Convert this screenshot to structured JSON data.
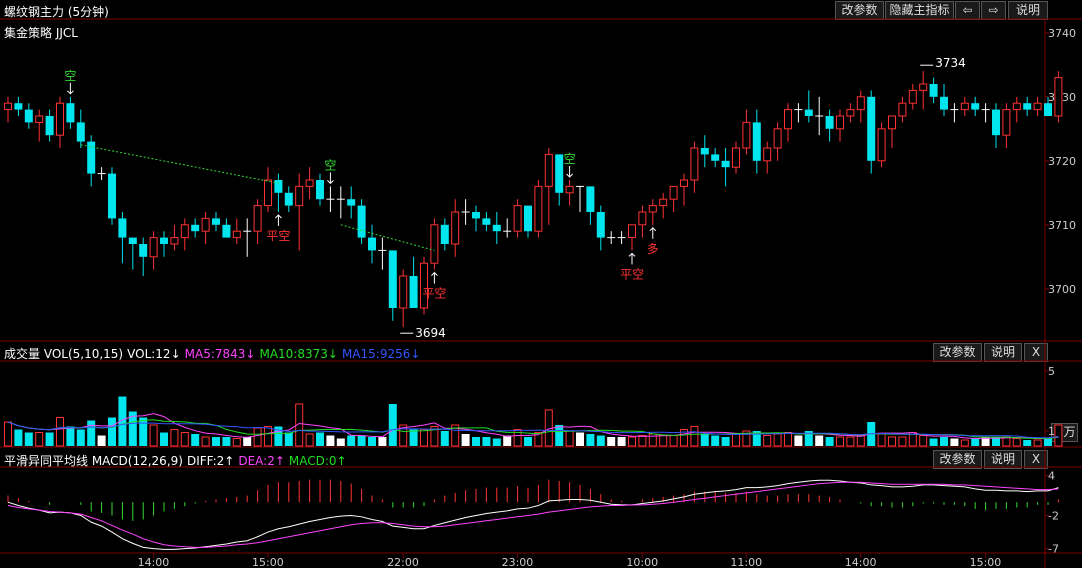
{
  "main": {
    "title": "螺纹钢主力 (5分钟)",
    "strategy": "集金策略 JJCL",
    "buttons": {
      "params": "改参数",
      "hide": "隐藏主指标",
      "left": "⇦",
      "right": "⇨",
      "help": "说明"
    },
    "y_ticks": [
      "3740",
      "3730",
      "3720",
      "3710",
      "3700"
    ],
    "high_label": "3734",
    "low_label": "3694"
  },
  "volume": {
    "segments": [
      {
        "text": "成交量 VOL(5,10,15)",
        "color": "#ffffff"
      },
      {
        "text": "VOL:12↓",
        "color": "#ffffff"
      },
      {
        "text": "MA5:7843↓",
        "color": "#ff44ff"
      },
      {
        "text": "MA10:8373↓",
        "color": "#22dd22"
      },
      {
        "text": "MA15:9256↓",
        "color": "#3355ff"
      }
    ],
    "buttons": {
      "params": "改参数",
      "help": "说明",
      "close": "X"
    },
    "y_ticks": [
      "5",
      "1"
    ],
    "unit_label": "×万"
  },
  "macd": {
    "segments": [
      {
        "text": "平滑异同平均线 MACD(12,26,9)",
        "color": "#ffffff"
      },
      {
        "text": "DIFF:2↑",
        "color": "#ffffff"
      },
      {
        "text": "DEA:2↑",
        "color": "#ff44ff"
      },
      {
        "text": "MACD:0↑",
        "color": "#22dd22"
      }
    ],
    "buttons": {
      "params": "改参数",
      "help": "说明",
      "close": "X"
    },
    "y_ticks": [
      "4",
      "-2",
      "-7"
    ]
  },
  "x_ticks": [
    "14:00",
    "15:00",
    "22:00",
    "23:00",
    "10:00",
    "11:00",
    "14:00",
    "15:00"
  ],
  "signals": [
    {
      "text": "空",
      "color": "#33dd33"
    },
    {
      "text": "平空",
      "color": "#ff3333"
    },
    {
      "text": "空",
      "color": "#33dd33"
    },
    {
      "text": "平空",
      "color": "#ff3333"
    },
    {
      "text": "空",
      "color": "#33dd33"
    },
    {
      "text": "平空",
      "color": "#ff3333"
    },
    {
      "text": "多",
      "color": "#ff3333"
    }
  ],
  "colors": {
    "up": "#ff3333",
    "down": "#00e5ee",
    "flat": "#ffffff",
    "grid": "#7a0000",
    "bg": "#000000"
  },
  "chart_data": {
    "type": "candlestick",
    "ylim": [
      3692,
      3742
    ],
    "candles": [
      [
        3728,
        3730,
        3726,
        3729
      ],
      [
        3729,
        3730,
        3727,
        3728
      ],
      [
        3728,
        3729,
        3725,
        3726
      ],
      [
        3726,
        3728,
        3723,
        3727
      ],
      [
        3727,
        3728,
        3723,
        3724
      ],
      [
        3724,
        3730,
        3722,
        3729
      ],
      [
        3729,
        3730,
        3725,
        3726
      ],
      [
        3726,
        3728,
        3722,
        3723
      ],
      [
        3723,
        3724,
        3716,
        3718
      ],
      [
        3718,
        3719,
        3717,
        3718
      ],
      [
        3718,
        3719,
        3710,
        3711
      ],
      [
        3711,
        3712,
        3704,
        3708
      ],
      [
        3708,
        3708,
        3703,
        3707
      ],
      [
        3707,
        3708,
        3702,
        3705
      ],
      [
        3705,
        3709,
        3703,
        3708
      ],
      [
        3708,
        3709,
        3705,
        3707
      ],
      [
        3707,
        3710,
        3706,
        3708
      ],
      [
        3708,
        3711,
        3706,
        3710
      ],
      [
        3710,
        3711,
        3708,
        3709
      ],
      [
        3709,
        3712,
        3707,
        3711
      ],
      [
        3711,
        3712,
        3709,
        3710
      ],
      [
        3710,
        3711,
        3708,
        3708
      ],
      [
        3708,
        3711,
        3707,
        3709
      ],
      [
        3709,
        3711,
        3705,
        3709
      ],
      [
        3709,
        3714,
        3707,
        3713
      ],
      [
        3713,
        3719,
        3712,
        3717
      ],
      [
        3717,
        3718,
        3712,
        3715
      ],
      [
        3715,
        3716,
        3712,
        3713
      ],
      [
        3713,
        3718,
        3706,
        3716
      ],
      [
        3716,
        3719,
        3714,
        3717
      ],
      [
        3717,
        3718,
        3713,
        3714
      ],
      [
        3714,
        3716,
        3712,
        3714
      ],
      [
        3714,
        3716,
        3711,
        3714
      ],
      [
        3714,
        3716,
        3711,
        3713
      ],
      [
        3713,
        3714,
        3707,
        3708
      ],
      [
        3708,
        3710,
        3704,
        3706
      ],
      [
        3706,
        3708,
        3703,
        3706
      ],
      [
        3706,
        3706,
        3695,
        3697
      ],
      [
        3697,
        3703,
        3694,
        3702
      ],
      [
        3702,
        3705,
        3697,
        3697
      ],
      [
        3697,
        3705,
        3696,
        3704
      ],
      [
        3704,
        3711,
        3703,
        3710
      ],
      [
        3710,
        3711,
        3706,
        3707
      ],
      [
        3707,
        3714,
        3705,
        3712
      ],
      [
        3712,
        3714,
        3710,
        3712
      ],
      [
        3712,
        3713,
        3709,
        3711
      ],
      [
        3711,
        3712,
        3709,
        3710
      ],
      [
        3710,
        3712,
        3707,
        3709
      ],
      [
        3709,
        3711,
        3708,
        3709
      ],
      [
        3709,
        3714,
        3708,
        3713
      ],
      [
        3713,
        3713,
        3708,
        3709
      ],
      [
        3709,
        3717,
        3708,
        3716
      ],
      [
        3716,
        3722,
        3710,
        3721
      ],
      [
        3721,
        3721,
        3713,
        3715
      ],
      [
        3715,
        3717,
        3713,
        3716
      ],
      [
        3716,
        3716,
        3712,
        3716
      ],
      [
        3716,
        3716,
        3710,
        3712
      ],
      [
        3712,
        3713,
        3706,
        3708
      ],
      [
        3708,
        3709,
        3707,
        3708
      ],
      [
        3708,
        3709,
        3707,
        3708
      ],
      [
        3708,
        3710,
        3706,
        3710
      ],
      [
        3710,
        3713,
        3708,
        3712
      ],
      [
        3712,
        3714,
        3710,
        3713
      ],
      [
        3713,
        3715,
        3711,
        3714
      ],
      [
        3714,
        3716,
        3712,
        3716
      ],
      [
        3716,
        3718,
        3713,
        3717
      ],
      [
        3717,
        3723,
        3715,
        3722
      ],
      [
        3722,
        3724,
        3719,
        3721
      ],
      [
        3721,
        3722,
        3719,
        3720
      ],
      [
        3720,
        3722,
        3716,
        3719
      ],
      [
        3719,
        3723,
        3718,
        3722
      ],
      [
        3722,
        3728,
        3721,
        3726
      ],
      [
        3726,
        3728,
        3718,
        3720
      ],
      [
        3720,
        3723,
        3718,
        3722
      ],
      [
        3722,
        3726,
        3720,
        3725
      ],
      [
        3725,
        3729,
        3723,
        3728
      ],
      [
        3728,
        3729,
        3726,
        3728
      ],
      [
        3728,
        3731,
        3726,
        3727
      ],
      [
        3727,
        3730,
        3724,
        3727
      ],
      [
        3727,
        3728,
        3723,
        3725
      ],
      [
        3725,
        3728,
        3723,
        3727
      ],
      [
        3727,
        3729,
        3726,
        3728
      ],
      [
        3728,
        3731,
        3726,
        3730
      ],
      [
        3730,
        3731,
        3718,
        3720
      ],
      [
        3720,
        3726,
        3719,
        3725
      ],
      [
        3725,
        3727,
        3722,
        3727
      ],
      [
        3727,
        3730,
        3726,
        3729
      ],
      [
        3729,
        3732,
        3728,
        3731
      ],
      [
        3731,
        3734,
        3728,
        3732
      ],
      [
        3732,
        3733,
        3729,
        3730
      ],
      [
        3730,
        3732,
        3727,
        3728
      ],
      [
        3728,
        3729,
        3726,
        3728
      ],
      [
        3728,
        3730,
        3727,
        3729
      ],
      [
        3729,
        3730,
        3727,
        3728
      ],
      [
        3728,
        3729,
        3726,
        3728
      ],
      [
        3728,
        3729,
        3722,
        3724
      ],
      [
        3724,
        3729,
        3722,
        3728
      ],
      [
        3728,
        3730,
        3726,
        3729
      ],
      [
        3729,
        3730,
        3727,
        3728
      ],
      [
        3728,
        3730,
        3727,
        3729
      ],
      [
        3729,
        3730,
        3727,
        3727
      ],
      [
        3727,
        3734,
        3726,
        3733
      ]
    ],
    "volume": [
      1.6,
      1.1,
      0.9,
      0.9,
      0.9,
      1.9,
      1.3,
      1.1,
      1.7,
      0.7,
      1.9,
      3.3,
      2.3,
      1.9,
      1.4,
      0.9,
      1.1,
      0.9,
      0.8,
      0.6,
      0.6,
      0.6,
      0.5,
      0.6,
      1.2,
      1.3,
      1.3,
      0.9,
      2.8,
      0.8,
      0.9,
      0.7,
      0.5,
      0.7,
      0.7,
      0.6,
      0.6,
      2.8,
      1.4,
      1.1,
      1.1,
      1.3,
      1.0,
      1.4,
      0.8,
      0.6,
      0.6,
      0.5,
      0.7,
      1.1,
      0.6,
      0.9,
      2.4,
      1.4,
      1.0,
      0.9,
      0.8,
      0.7,
      0.6,
      0.6,
      0.6,
      0.7,
      0.8,
      0.7,
      0.7,
      1.1,
      1.3,
      0.8,
      0.7,
      0.6,
      0.8,
      1.0,
      1.0,
      0.7,
      0.8,
      0.9,
      0.7,
      1.0,
      0.7,
      0.6,
      0.6,
      0.6,
      0.7,
      1.6,
      0.8,
      0.6,
      0.6,
      0.9,
      0.7,
      0.5,
      0.6,
      0.5,
      0.4,
      0.5,
      0.6,
      0.6,
      0.6,
      0.5,
      0.4,
      0.4,
      0.5,
      1.4
    ],
    "vol_ylim": [
      0,
      5.6
    ],
    "macd_ylim": [
      -7.5,
      5
    ],
    "diff": [
      0,
      -0.5,
      -0.9,
      -1.2,
      -1.6,
      -1.5,
      -1.6,
      -2,
      -3,
      -3.6,
      -4.5,
      -5.5,
      -6.2,
      -6.8,
      -7,
      -7.1,
      -7.1,
      -7,
      -6.9,
      -6.7,
      -6.5,
      -6.3,
      -6.0,
      -5.8,
      -5.2,
      -4.5,
      -4.0,
      -3.7,
      -3.3,
      -2.9,
      -2.6,
      -2.3,
      -2.1,
      -2,
      -2.2,
      -2.6,
      -2.9,
      -3.6,
      -3.8,
      -4.0,
      -4.0,
      -3.5,
      -3.1,
      -2.7,
      -2.3,
      -2,
      -1.7,
      -1.5,
      -1.3,
      -1,
      -0.9,
      -0.5,
      0.2,
      0.3,
      0.4,
      0.4,
      0.3,
      0,
      -0.3,
      -0.4,
      -0.4,
      -0.2,
      0,
      0.2,
      0.5,
      0.8,
      1.2,
      1.4,
      1.6,
      1.7,
      1.9,
      2.2,
      2.2,
      2.3,
      2.5,
      2.8,
      3,
      3.2,
      3.3,
      3.3,
      3.2,
      3.0,
      2.9,
      2.6,
      2.5,
      2.3,
      2.3,
      2.4,
      2.6,
      2.6,
      2.5,
      2.4,
      2.3,
      2.0,
      1.8,
      1.8,
      1.7,
      1.7,
      1.6,
      1.7,
      1.7,
      2.2
    ],
    "dea": [
      -0.5,
      -0.8,
      -1.0,
      -1.2,
      -1.4,
      -1.5,
      -1.6,
      -1.8,
      -2.3,
      -2.8,
      -3.5,
      -4.2,
      -4.8,
      -5.5,
      -6,
      -6.4,
      -6.6,
      -6.7,
      -6.8,
      -6.8,
      -6.7,
      -6.6,
      -6.4,
      -6.3,
      -6.1,
      -5.8,
      -5.5,
      -5.2,
      -4.9,
      -4.6,
      -4.3,
      -4.0,
      -3.7,
      -3.4,
      -3.2,
      -3.1,
      -3.1,
      -3.2,
      -3.4,
      -3.6,
      -3.7,
      -3.7,
      -3.6,
      -3.4,
      -3.2,
      -3.0,
      -2.8,
      -2.6,
      -2.4,
      -2.2,
      -2.0,
      -1.8,
      -1.5,
      -1.3,
      -1.1,
      -0.9,
      -0.7,
      -0.6,
      -0.5,
      -0.5,
      -0.4,
      -0.4,
      -0.3,
      -0.2,
      0,
      0.2,
      0.4,
      0.6,
      0.8,
      1.0,
      1.2,
      1.4,
      1.6,
      1.8,
      2.0,
      2.2,
      2.4,
      2.6,
      2.8,
      2.9,
      3.0,
      3.0,
      3.0,
      2.9,
      2.8,
      2.7,
      2.7,
      2.7,
      2.7,
      2.7,
      2.7,
      2.6,
      2.6,
      2.5,
      2.4,
      2.3,
      2.2,
      2.1,
      2.0,
      1.9,
      1.9,
      2.0
    ]
  }
}
